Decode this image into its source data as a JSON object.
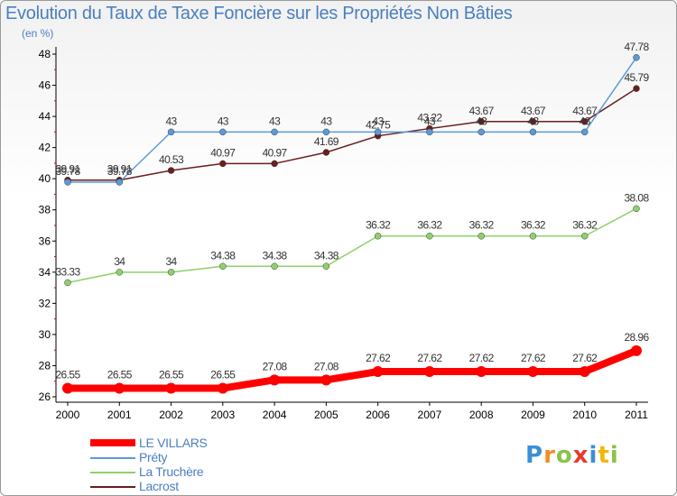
{
  "header": {
    "title": "Evolution du Taux de Taxe Foncière sur les Propriétés Non Bâties",
    "subtitle": "(en %)"
  },
  "logo_text": "Proxiti",
  "colors": {
    "axis": "#000000",
    "tick_text": "#000000",
    "label_text": "#333333"
  },
  "chart_data": {
    "type": "line",
    "title": "Evolution du Taux de Taxe Foncière sur les Propriétés Non Bâties",
    "ylabel": "(en %)",
    "xlabel": "",
    "ylim": [
      26,
      48
    ],
    "yticks": [
      26,
      28,
      30,
      32,
      34,
      36,
      38,
      40,
      42,
      44,
      46,
      48
    ],
    "x": [
      "2000",
      "2001",
      "2002",
      "2003",
      "2004",
      "2005",
      "2006",
      "2007",
      "2008",
      "2009",
      "2010",
      "2011"
    ],
    "series": [
      {
        "name": "Lacrost",
        "color": "#6b1d1d",
        "values": [
          39.91,
          39.91,
          40.53,
          40.97,
          40.97,
          41.69,
          42.75,
          43.22,
          43.67,
          43.67,
          43.67,
          45.79
        ],
        "labels": [
          "39.91",
          "39.91",
          "40.53",
          "40.97",
          "40.97",
          "41.69",
          "42.75",
          "43.22",
          "43.67",
          "43.67",
          "43.67",
          "45.79"
        ]
      },
      {
        "name": "Préty",
        "color": "#5b9bd5",
        "values": [
          39.78,
          39.78,
          43,
          43,
          43,
          43,
          43,
          43,
          43,
          43,
          43,
          47.78
        ],
        "labels": [
          "39.78",
          "39.78",
          "43",
          "43",
          "43",
          "43",
          "43",
          "43",
          "43",
          "43",
          "43",
          "47.78"
        ]
      },
      {
        "name": "La Truchère",
        "color": "#8ed16a",
        "values": [
          33.33,
          34,
          34,
          34.38,
          34.38,
          34.38,
          36.32,
          36.32,
          36.32,
          36.32,
          36.32,
          38.08
        ],
        "labels": [
          "33.33",
          "34",
          "34",
          "34.38",
          "34.38",
          "34.38",
          "36.32",
          "36.32",
          "36.32",
          "36.32",
          "36.32",
          "38.08"
        ]
      },
      {
        "name": "LE VILLARS",
        "color": "#ff0000",
        "values": [
          26.55,
          26.55,
          26.55,
          26.55,
          27.08,
          27.08,
          27.62,
          27.62,
          27.62,
          27.62,
          27.62,
          28.96
        ],
        "labels": [
          "26.55",
          "26.55",
          "26.55",
          "26.55",
          "27.08",
          "27.08",
          "27.62",
          "27.62",
          "27.62",
          "27.62",
          "27.62",
          "28.96"
        ]
      }
    ],
    "legend": {
      "position": "bottom-left",
      "items": [
        "LE VILLARS",
        "Préty",
        "La Truchère",
        "Lacrost"
      ]
    }
  }
}
